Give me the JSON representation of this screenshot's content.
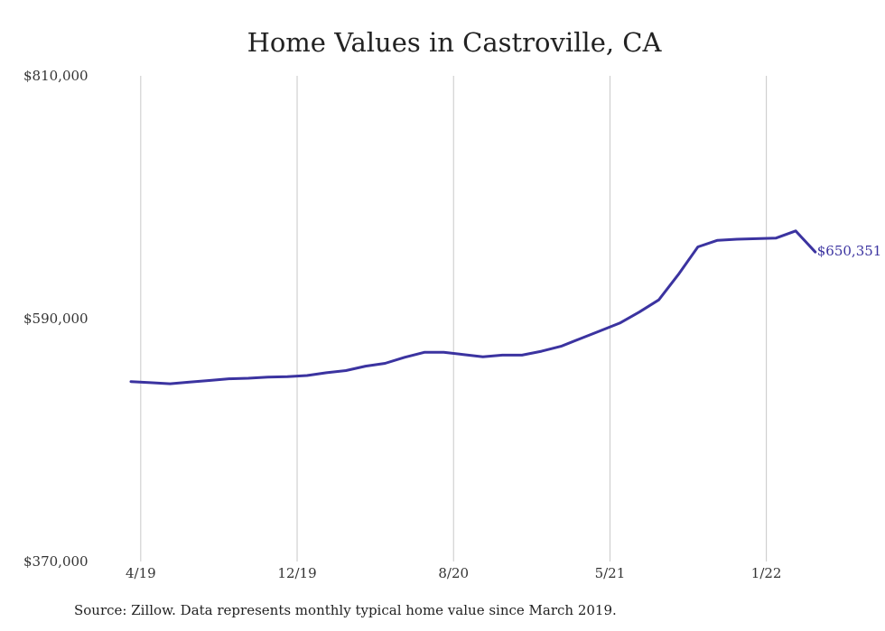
{
  "chart_data": {
    "type": "line",
    "title": "Home Values in Castroville, CA",
    "xlabel": "",
    "ylabel": "",
    "ylim": [
      370000,
      810000
    ],
    "y_ticks": [
      "$810,000",
      "$590,000",
      "$370,000"
    ],
    "y_tick_values": [
      810000,
      590000,
      370000
    ],
    "x_ticks": [
      "4/19",
      "12/19",
      "8/20",
      "5/21",
      "1/22"
    ],
    "x_tick_index": [
      0.5,
      8.5,
      16.5,
      24.5,
      32.5
    ],
    "grid": "vertical",
    "line_color": "#3b33a0",
    "series": [
      {
        "x": [
          "3/19",
          "4/19",
          "5/19",
          "6/19",
          "7/19",
          "8/19",
          "9/19",
          "10/19",
          "11/19",
          "12/19",
          "1/20",
          "2/20",
          "3/20",
          "4/20",
          "5/20",
          "6/20",
          "7/20",
          "8/20",
          "9/20",
          "10/20",
          "11/20",
          "12/20",
          "1/21",
          "2/21",
          "3/21",
          "4/21",
          "5/21",
          "6/21",
          "7/21",
          "8/21",
          "9/21",
          "10/21",
          "11/21",
          "12/21",
          "1/22",
          "2/22"
        ],
        "values": [
          533000,
          532000,
          531000,
          532500,
          534000,
          535500,
          536000,
          537000,
          537500,
          538500,
          541000,
          543000,
          547000,
          549500,
          555000,
          559500,
          559500,
          557500,
          555500,
          557000,
          557000,
          560500,
          565000,
          572000,
          579000,
          586000,
          596000,
          607000,
          630000,
          655000,
          661000,
          662000,
          662500,
          663000,
          669500,
          650351
        ]
      }
    ],
    "annotations": [
      {
        "text": "$650,351"
      }
    ]
  },
  "source_note": "Source: Zillow. Data represents monthly typical home value since March 2019."
}
